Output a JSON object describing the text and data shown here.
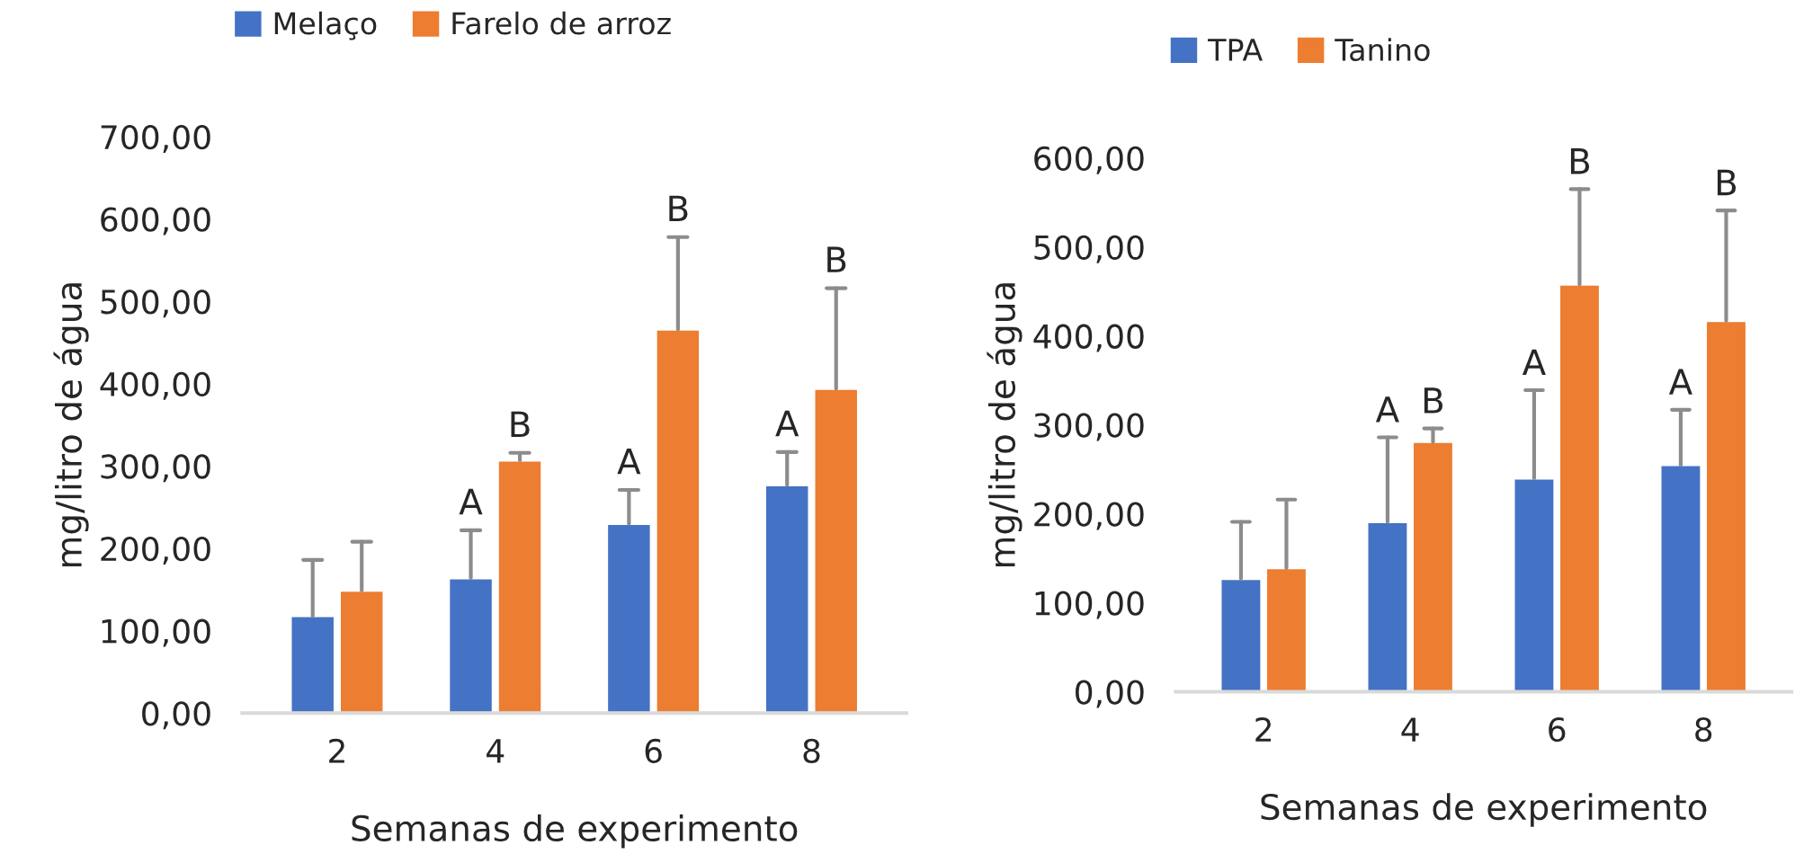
{
  "chart_data": [
    {
      "type": "bar",
      "categories": [
        "2",
        "4",
        "6",
        "8"
      ],
      "xlabel": "Semanas de experimento",
      "ylabel": "mg/litro de água",
      "ylim": [
        0,
        700
      ],
      "yticks": [
        {
          "value": 0,
          "label": "0,00"
        },
        {
          "value": 100,
          "label": "100,00"
        },
        {
          "value": 200,
          "label": "200,00"
        },
        {
          "value": 300,
          "label": "300,00"
        },
        {
          "value": 400,
          "label": "400,00"
        },
        {
          "value": 500,
          "label": "500,00"
        },
        {
          "value": 600,
          "label": "600,00"
        },
        {
          "value": 700,
          "label": "700,00"
        }
      ],
      "grid": false,
      "legend": "top",
      "annotations": [
        "A",
        "A",
        "A",
        "B",
        "B",
        "B"
      ],
      "series": [
        {
          "name": "Melaço",
          "color": "#4472c4",
          "values": [
            118,
            164,
            230,
            277
          ],
          "errors": [
            [
              118,
              186
            ],
            [
              164,
              222
            ],
            [
              230,
              271
            ],
            [
              277,
              317
            ]
          ]
        },
        {
          "name": "Farelo de arroz",
          "color": "#ed7d31",
          "values": [
            149,
            307,
            466,
            394
          ],
          "errors": [
            [
              149,
              208
            ],
            [
              307,
              316
            ],
            [
              466,
              578
            ],
            [
              394,
              516
            ]
          ]
        }
      ]
    },
    {
      "type": "bar",
      "categories": [
        "2",
        "4",
        "6",
        "8"
      ],
      "xlabel": "Semanas de experimento",
      "ylabel": "mg/litro de água",
      "ylim": [
        0,
        600
      ],
      "yticks": [
        {
          "value": 0,
          "label": "0,00"
        },
        {
          "value": 100,
          "label": "100,00"
        },
        {
          "value": 200,
          "label": "200,00"
        },
        {
          "value": 300,
          "label": "300,00"
        },
        {
          "value": 400,
          "label": "400,00"
        },
        {
          "value": 500,
          "label": "500,00"
        },
        {
          "value": 600,
          "label": "600,00"
        }
      ],
      "grid": false,
      "legend": "top",
      "annotations": [
        "A",
        "A",
        "A",
        "B",
        "B",
        "B"
      ],
      "series": [
        {
          "name": "TPA",
          "color": "#4472c4",
          "values": [
            127,
            191,
            240,
            255
          ],
          "errors": [
            [
              127,
              191
            ],
            [
              191,
              286
            ],
            [
              240,
              339
            ],
            [
              255,
              317
            ]
          ]
        },
        {
          "name": "Tanino",
          "color": "#ed7d31",
          "values": [
            139,
            281,
            458,
            417
          ],
          "errors": [
            [
              139,
              216
            ],
            [
              281,
              296
            ],
            [
              458,
              565
            ],
            [
              417,
              541
            ]
          ]
        }
      ]
    }
  ]
}
